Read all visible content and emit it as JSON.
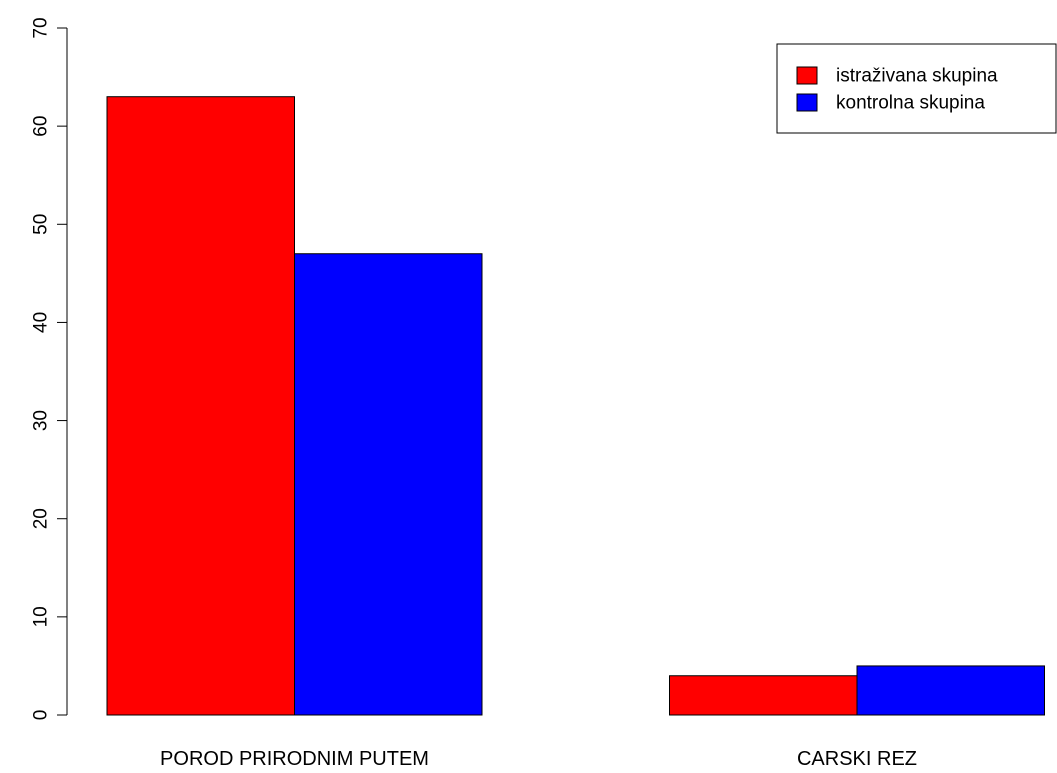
{
  "chart_data": {
    "type": "bar",
    "title": "",
    "xlabel": "",
    "ylabel": "",
    "categories": [
      "POROD PRIRODNIM PUTEM",
      "CARSKI REZ"
    ],
    "series": [
      {
        "name": "istraživana skupina",
        "values": [
          63,
          4
        ],
        "color": "#ff0000"
      },
      {
        "name": "kontrolna skupina",
        "values": [
          47,
          5
        ],
        "color": "#0000ff"
      }
    ],
    "ylim": [
      0,
      70
    ],
    "yticks": [
      "0",
      "10",
      "20",
      "30",
      "40",
      "50",
      "60",
      "70"
    ],
    "grid": false,
    "legend_position": "top-right"
  }
}
